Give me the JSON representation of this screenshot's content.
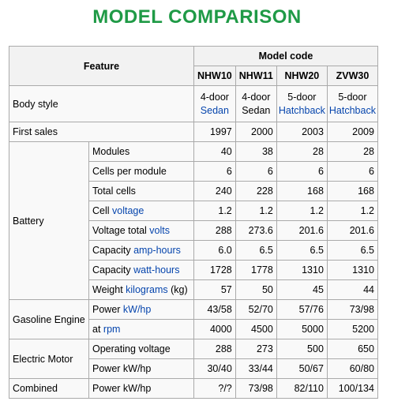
{
  "title": "MODEL COMPARISON",
  "header": {
    "feature": "Feature",
    "model_code": "Model code",
    "models": [
      "NHW10",
      "NHW11",
      "NHW20",
      "ZVW30"
    ]
  },
  "body_style": {
    "label": "Body style",
    "values": [
      {
        "line1": "4-door",
        "line2": "Sedan",
        "line2_link": true
      },
      {
        "line1": "4-door",
        "line2": "Sedan",
        "line2_link": false
      },
      {
        "line1": "5-door",
        "line2": "Hatchback",
        "line2_link": true
      },
      {
        "line1": "5-door",
        "line2": "Hatchback",
        "line2_link": true
      }
    ]
  },
  "first_sales": {
    "label": "First sales",
    "values": [
      "1997",
      "2000",
      "2003",
      "2009"
    ]
  },
  "battery": {
    "label": "Battery",
    "rows": [
      {
        "label": "Modules",
        "link": "",
        "values": [
          "40",
          "38",
          "28",
          "28"
        ]
      },
      {
        "label": "Cells per module",
        "link": "",
        "values": [
          "6",
          "6",
          "6",
          "6"
        ]
      },
      {
        "label": "Total cells",
        "link": "",
        "values": [
          "240",
          "228",
          "168",
          "168"
        ]
      },
      {
        "label": "Cell ",
        "link": "voltage",
        "suffix": "",
        "values": [
          "1.2",
          "1.2",
          "1.2",
          "1.2"
        ]
      },
      {
        "label": "Voltage total ",
        "link": "volts",
        "suffix": "",
        "values": [
          "288",
          "273.6",
          "201.6",
          "201.6"
        ]
      },
      {
        "label": "Capacity ",
        "link": "amp-hours",
        "suffix": "",
        "values": [
          "6.0",
          "6.5",
          "6.5",
          "6.5"
        ]
      },
      {
        "label": "Capacity ",
        "link": "watt-hours",
        "suffix": "",
        "values": [
          "1728",
          "1778",
          "1310",
          "1310"
        ]
      },
      {
        "label": "Weight ",
        "link": "kilograms",
        "suffix": " (kg)",
        "values": [
          "57",
          "50",
          "45",
          "44"
        ]
      }
    ]
  },
  "gasoline_engine": {
    "label": "Gasoline Engine",
    "rows": [
      {
        "label": "Power ",
        "link": "kW/hp",
        "suffix": "",
        "values": [
          "43/58",
          "52/70",
          "57/76",
          "73/98"
        ]
      },
      {
        "label": "at ",
        "link": "rpm",
        "suffix": "",
        "values": [
          "4000",
          "4500",
          "5000",
          "5200"
        ]
      }
    ]
  },
  "electric_motor": {
    "label": "Electric Motor",
    "rows": [
      {
        "label": "Operating voltage",
        "link": "",
        "suffix": "",
        "values": [
          "288",
          "273",
          "500",
          "650"
        ]
      },
      {
        "label": "Power kW/hp",
        "link": "",
        "suffix": "",
        "values": [
          "30/40",
          "33/44",
          "50/67",
          "60/80"
        ]
      }
    ]
  },
  "combined": {
    "label": "Combined",
    "row": {
      "label": "Power kW/hp",
      "values": [
        "?/?",
        "73/98",
        "82/110",
        "100/134"
      ]
    }
  },
  "colors": {
    "title": "#1f9a46",
    "link": "#0645ad",
    "border": "#aaaaaa",
    "header_bg": "#f2f2f2",
    "cell_bg": "#f9f9f9"
  }
}
